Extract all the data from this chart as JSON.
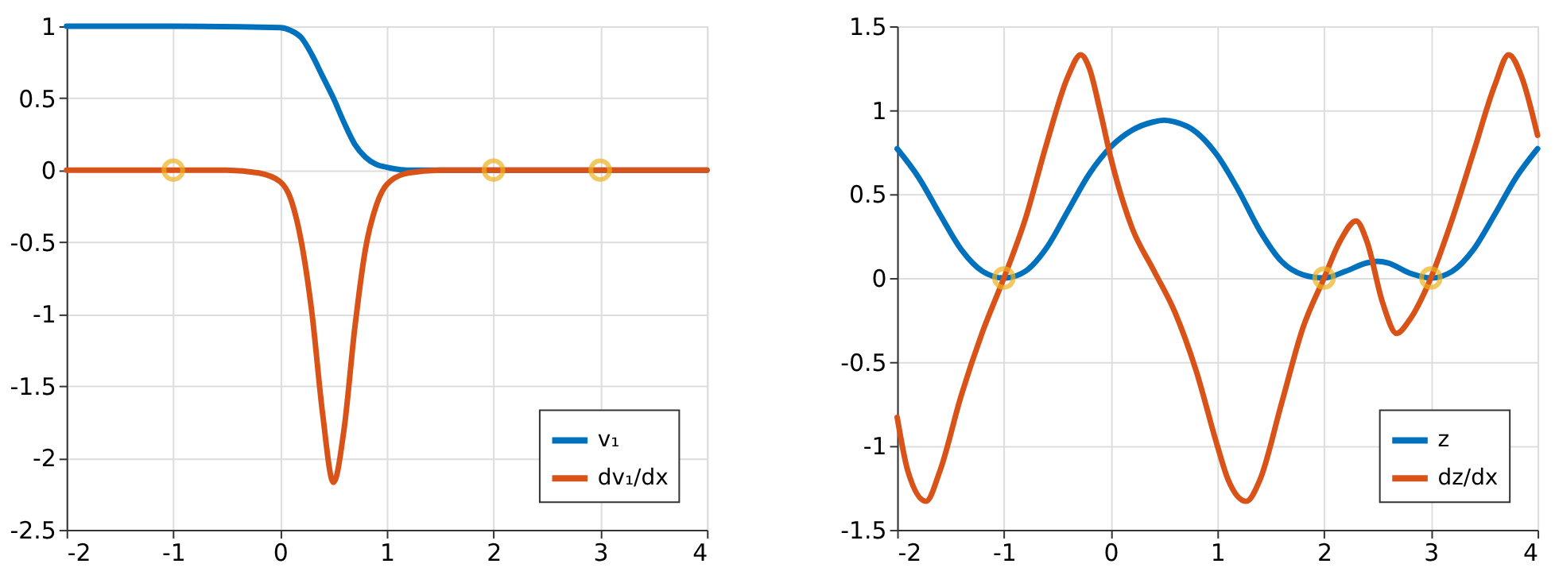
{
  "chart_data": [
    {
      "type": "line",
      "xlim": [
        -2,
        4
      ],
      "xticks": [
        -2,
        -1,
        0,
        1,
        2,
        3,
        4
      ],
      "ylim": [
        -2.5,
        1
      ],
      "yticks": [
        -2.5,
        -2,
        -1.5,
        -1,
        -0.5,
        0,
        0.5,
        1
      ],
      "grid": true,
      "legend": "bottom right",
      "line_style": "solid",
      "series": [
        {
          "name": "v₁",
          "color": "#0072bd",
          "x": [
            -2,
            -1,
            0,
            0.1,
            0.2,
            0.3,
            0.4,
            0.5,
            0.6,
            0.7,
            0.8,
            0.9,
            1.0,
            1.2,
            1.5,
            4
          ],
          "values": [
            1,
            1,
            0.99,
            0.97,
            0.92,
            0.8,
            0.65,
            0.5,
            0.33,
            0.18,
            0.09,
            0.04,
            0.02,
            0,
            0,
            0
          ]
        },
        {
          "name": "dv₁/dx",
          "color": "#d95319",
          "x": [
            -2,
            -1,
            -0.5,
            -0.2,
            0,
            0.1,
            0.2,
            0.3,
            0.4,
            0.5,
            0.6,
            0.7,
            0.8,
            0.9,
            1.0,
            1.2,
            1.5,
            4
          ],
          "values": [
            0,
            0,
            0,
            -0.02,
            -0.08,
            -0.2,
            -0.5,
            -1.0,
            -1.7,
            -2.17,
            -1.8,
            -1.1,
            -0.55,
            -0.25,
            -0.1,
            -0.02,
            0,
            0
          ]
        },
        {
          "type": "scatter",
          "marker": "circle",
          "color": "#edb120",
          "x": [
            -1,
            2,
            3
          ],
          "values": [
            0,
            0,
            0
          ]
        }
      ]
    },
    {
      "type": "line",
      "xlim": [
        -2,
        4
      ],
      "xticks": [
        -2,
        -1,
        0,
        1,
        2,
        3,
        4
      ],
      "ylim": [
        -1.5,
        1.5
      ],
      "yticks": [
        -1.5,
        -1,
        -0.5,
        0,
        0.5,
        1,
        1.5
      ],
      "grid": true,
      "legend": "bottom right",
      "line_style": "solid",
      "series": [
        {
          "name": "z",
          "color": "#0072bd",
          "x": [
            -2,
            -1.8,
            -1.6,
            -1.4,
            -1.2,
            -1,
            -0.8,
            -0.6,
            -0.4,
            -0.2,
            0,
            0.2,
            0.4,
            0.5,
            0.6,
            0.8,
            1.0,
            1.2,
            1.4,
            1.6,
            1.8,
            2,
            2.2,
            2.4,
            2.5,
            2.6,
            2.8,
            3,
            3.2,
            3.4,
            3.6,
            3.8,
            4
          ],
          "values": [
            0.77,
            0.6,
            0.38,
            0.17,
            0.04,
            0,
            0.04,
            0.18,
            0.4,
            0.62,
            0.78,
            0.88,
            0.93,
            0.94,
            0.93,
            0.87,
            0.73,
            0.52,
            0.28,
            0.1,
            0.02,
            0,
            0.04,
            0.09,
            0.1,
            0.09,
            0.03,
            0,
            0.04,
            0.17,
            0.38,
            0.6,
            0.77
          ]
        },
        {
          "name": "dz/dx",
          "color": "#d95319",
          "x": [
            -2,
            -1.9,
            -1.73,
            -1.6,
            -1.4,
            -1.2,
            -1,
            -0.8,
            -0.6,
            -0.4,
            -0.28,
            -0.2,
            -0.1,
            0,
            0.2,
            0.4,
            0.6,
            0.8,
            1.0,
            1.1,
            1.27,
            1.4,
            1.6,
            1.8,
            2,
            2.15,
            2.3,
            2.4,
            2.55,
            2.68,
            2.8,
            3,
            3.2,
            3.4,
            3.6,
            3.73,
            3.85,
            4
          ],
          "values": [
            -0.83,
            -1.15,
            -1.33,
            -1.15,
            -0.7,
            -0.32,
            0,
            0.35,
            0.8,
            1.2,
            1.33,
            1.25,
            1.0,
            0.72,
            0.3,
            0.05,
            -0.2,
            -0.55,
            -1.0,
            -1.2,
            -1.33,
            -1.2,
            -0.75,
            -0.3,
            0,
            0.22,
            0.34,
            0.22,
            -0.15,
            -0.33,
            -0.25,
            0,
            0.35,
            0.75,
            1.15,
            1.33,
            1.2,
            0.85
          ]
        },
        {
          "type": "scatter",
          "marker": "circle",
          "color": "#edb120",
          "x": [
            -1,
            2,
            3
          ],
          "values": [
            0,
            0,
            0
          ]
        }
      ]
    }
  ]
}
